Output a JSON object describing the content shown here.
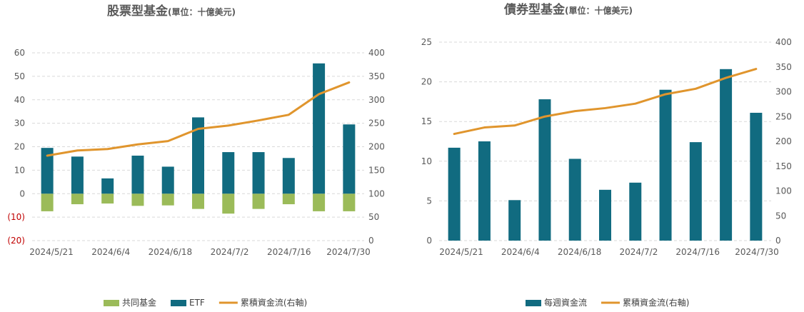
{
  "colors": {
    "etf": "#116b80",
    "mutual_fund": "#9bbb59",
    "cumulative": "#e0952d",
    "grid": "#d9d9d9",
    "axis_text": "#595959",
    "negative_text": "#c00000"
  },
  "chart_data": [
    {
      "type": "bar",
      "title": "股票型基金",
      "subtitle": "(單位：十億美元)",
      "x_tick_labels": [
        "2024/5/21",
        "2024/6/4",
        "2024/6/18",
        "2024/7/2",
        "2024/7/16",
        "2024/7/30"
      ],
      "y_left_ticks": [
        "60",
        "50",
        "40",
        "30",
        "20",
        "10",
        "0",
        "(10)",
        "(20)"
      ],
      "y_right_ticks": [
        "400",
        "350",
        "300",
        "250",
        "200",
        "150",
        "100",
        "50",
        "0"
      ],
      "ylim_left": [
        -20,
        60
      ],
      "ylim_right": [
        0,
        400
      ],
      "grid": true,
      "legend_position": "bottom",
      "series": [
        {
          "name": "共同基金",
          "type": "bar",
          "axis": "left",
          "values": [
            -7.5,
            -4.5,
            -4.2,
            -5.2,
            -5.0,
            -6.5,
            -8.5,
            -6.5,
            -4.5,
            -7.5,
            -7.5
          ]
        },
        {
          "name": "ETF",
          "type": "bar",
          "axis": "left",
          "values": [
            19.5,
            15.8,
            6.5,
            16.2,
            11.5,
            32.5,
            17.7,
            17.7,
            15.2,
            55.5,
            29.5
          ]
        },
        {
          "name": "累積資金流(右軸)",
          "type": "line",
          "axis": "right",
          "values": [
            181,
            192,
            195,
            205,
            212,
            238,
            245,
            256,
            268,
            312,
            337
          ]
        }
      ]
    },
    {
      "type": "bar",
      "title": "債券型基金",
      "subtitle": "(單位：十億美元)",
      "x_tick_labels": [
        "2024/5/21",
        "2024/6/4",
        "2024/6/18",
        "2024/7/2",
        "2024/7/16",
        "2024/7/30"
      ],
      "y_left_ticks": [
        "25",
        "20",
        "15",
        "10",
        "5",
        "0"
      ],
      "y_right_ticks": [
        "400",
        "350",
        "300",
        "250",
        "200",
        "150",
        "100",
        "50",
        "0"
      ],
      "ylim_left": [
        0,
        25
      ],
      "ylim_right": [
        0,
        400
      ],
      "grid": true,
      "legend_position": "bottom",
      "series": [
        {
          "name": "每週資金流",
          "type": "bar",
          "axis": "left",
          "values": [
            11.7,
            12.5,
            5.1,
            17.8,
            10.3,
            6.4,
            7.3,
            19.0,
            12.4,
            21.6,
            16.1
          ]
        },
        {
          "name": "累積資金流(右軸)",
          "type": "line",
          "axis": "right",
          "values": [
            215,
            228,
            232,
            250,
            261,
            267,
            276,
            295,
            306,
            328,
            346
          ]
        }
      ]
    }
  ]
}
